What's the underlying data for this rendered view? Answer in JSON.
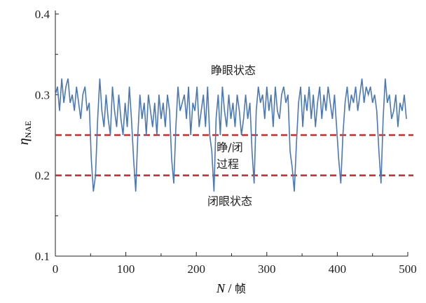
{
  "chart_data": {
    "type": "line",
    "title": "",
    "xlabel": "N / 帧",
    "xlabel_italic": "N",
    "xlabel_unit": "帧",
    "ylabel_symbol": "η",
    "ylabel_sub": "NAE",
    "xlim": [
      0,
      500
    ],
    "ylim": [
      0.1,
      0.4
    ],
    "x_ticks": [
      "0",
      "100",
      "200",
      "300",
      "400",
      "500"
    ],
    "y_ticks": [
      "0.1",
      "0.2",
      "0.3",
      "0.4"
    ],
    "grid": false,
    "line_color": "#4a78b4",
    "threshold_color": "#e02020",
    "thresholds": [
      0.25,
      0.2
    ],
    "annotations": {
      "open": "睁眼状态",
      "transition_1": "睁/闭",
      "transition_2": "过程",
      "closed": "闭眼状态"
    },
    "series": [
      {
        "name": "η_NAE",
        "x_step": 3,
        "values": [
          0.3,
          0.31,
          0.28,
          0.32,
          0.29,
          0.31,
          0.32,
          0.29,
          0.3,
          0.28,
          0.31,
          0.29,
          0.27,
          0.3,
          0.31,
          0.28,
          0.29,
          0.22,
          0.18,
          0.2,
          0.27,
          0.32,
          0.28,
          0.26,
          0.3,
          0.27,
          0.25,
          0.31,
          0.28,
          0.26,
          0.3,
          0.27,
          0.25,
          0.29,
          0.26,
          0.31,
          0.27,
          0.22,
          0.18,
          0.25,
          0.3,
          0.27,
          0.29,
          0.25,
          0.3,
          0.28,
          0.26,
          0.29,
          0.25,
          0.3,
          0.27,
          0.29,
          0.26,
          0.3,
          0.28,
          0.22,
          0.19,
          0.26,
          0.31,
          0.28,
          0.29,
          0.3,
          0.27,
          0.31,
          0.25,
          0.29,
          0.28,
          0.31,
          0.26,
          0.28,
          0.3,
          0.26,
          0.31,
          0.25,
          0.23,
          0.18,
          0.27,
          0.3,
          0.25,
          0.31,
          0.28,
          0.26,
          0.3,
          0.27,
          0.29,
          0.26,
          0.3,
          0.28,
          0.25,
          0.27,
          0.3,
          0.27,
          0.29,
          0.23,
          0.19,
          0.28,
          0.31,
          0.29,
          0.3,
          0.27,
          0.31,
          0.28,
          0.3,
          0.26,
          0.31,
          0.28,
          0.27,
          0.3,
          0.31,
          0.29,
          0.3,
          0.23,
          0.21,
          0.18,
          0.24,
          0.29,
          0.31,
          0.26,
          0.3,
          0.28,
          0.31,
          0.27,
          0.3,
          0.26,
          0.29,
          0.31,
          0.27,
          0.3,
          0.28,
          0.31,
          0.29,
          0.27,
          0.3,
          0.26,
          0.22,
          0.19,
          0.25,
          0.29,
          0.31,
          0.28,
          0.3,
          0.29,
          0.31,
          0.28,
          0.3,
          0.32,
          0.29,
          0.31,
          0.3,
          0.31,
          0.29,
          0.3,
          0.28,
          0.23,
          0.19,
          0.27,
          0.32,
          0.29,
          0.3,
          0.27,
          0.28,
          0.3,
          0.26,
          0.29,
          0.28,
          0.3,
          0.27
        ]
      }
    ]
  }
}
